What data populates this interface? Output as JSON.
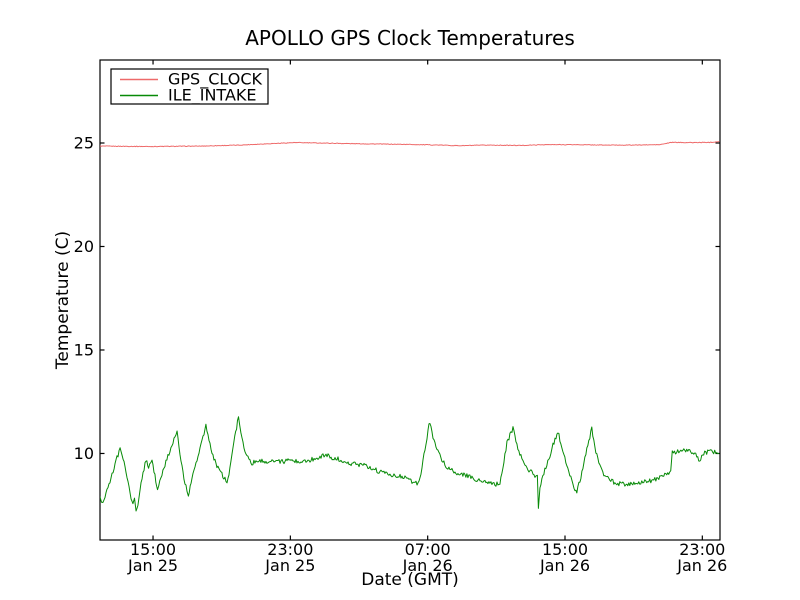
{
  "figure": {
    "background": "#ffffff",
    "frame_color": "#000000"
  },
  "chart_data": {
    "type": "line",
    "title": "APOLLO GPS Clock Temperatures",
    "xlabel": "Date (GMT)",
    "ylabel": "Temperature (C)",
    "x_unit": "hours_since_Jan25_0000_GMT",
    "xlim": [
      11.91,
      48.03
    ],
    "ylim": [
      5.82,
      29.01
    ],
    "grid": false,
    "legend_position": "upper-left",
    "x_ticks": [
      {
        "value": 15,
        "time": "15:00",
        "date": "Jan 25"
      },
      {
        "value": 23,
        "time": "23:00",
        "date": "Jan 25"
      },
      {
        "value": 31,
        "time": "07:00",
        "date": "Jan 26"
      },
      {
        "value": 39,
        "time": "15:00",
        "date": "Jan 26"
      },
      {
        "value": 47,
        "time": "23:00",
        "date": "Jan 26"
      }
    ],
    "y_ticks": [
      {
        "value": 10,
        "label": "10"
      },
      {
        "value": 15,
        "label": "15"
      },
      {
        "value": 20,
        "label": "20"
      },
      {
        "value": 25,
        "label": "25"
      }
    ],
    "series": [
      {
        "name": "GPS_CLOCK",
        "color": "#ee6a6a",
        "noise_amplitude": 0.015,
        "points": [
          [
            11.91,
            24.85
          ],
          [
            14.82,
            24.83
          ],
          [
            17.74,
            24.85
          ],
          [
            20.07,
            24.9
          ],
          [
            21.81,
            24.97
          ],
          [
            23.27,
            25.02
          ],
          [
            24.73,
            25.0
          ],
          [
            26.47,
            24.97
          ],
          [
            28.22,
            24.95
          ],
          [
            29.97,
            24.93
          ],
          [
            31.71,
            24.9
          ],
          [
            32.88,
            24.87
          ],
          [
            34.63,
            24.9
          ],
          [
            36.37,
            24.88
          ],
          [
            37.83,
            24.92
          ],
          [
            39.58,
            24.92
          ],
          [
            41.32,
            24.9
          ],
          [
            43.07,
            24.9
          ],
          [
            44.53,
            24.92
          ],
          [
            45.22,
            25.03
          ],
          [
            46.27,
            25.02
          ],
          [
            47.43,
            25.03
          ],
          [
            47.96,
            25.07
          ]
        ]
      },
      {
        "name": "ILE_INTAKE",
        "color": "#078a07",
        "noise_amplitude": 0.11,
        "points": [
          [
            11.91,
            7.9
          ],
          [
            12.0,
            7.75
          ],
          [
            12.08,
            7.6
          ],
          [
            12.26,
            8.1
          ],
          [
            12.49,
            8.6
          ],
          [
            12.73,
            9.3
          ],
          [
            12.9,
            9.8
          ],
          [
            13.08,
            10.2
          ],
          [
            13.31,
            9.6
          ],
          [
            13.54,
            8.6
          ],
          [
            13.72,
            7.9
          ],
          [
            13.83,
            7.5
          ],
          [
            13.92,
            7.8
          ],
          [
            14.01,
            7.15
          ],
          [
            14.12,
            7.6
          ],
          [
            14.36,
            8.8
          ],
          [
            14.59,
            9.7
          ],
          [
            14.74,
            9.3
          ],
          [
            14.94,
            9.75
          ],
          [
            15.11,
            8.9
          ],
          [
            15.26,
            8.25
          ],
          [
            15.46,
            8.8
          ],
          [
            15.75,
            9.6
          ],
          [
            16.1,
            10.4
          ],
          [
            16.4,
            11.0
          ],
          [
            16.57,
            10.0
          ],
          [
            16.8,
            8.8
          ],
          [
            16.98,
            8.15
          ],
          [
            17.06,
            8.0
          ],
          [
            17.27,
            8.8
          ],
          [
            17.62,
            9.9
          ],
          [
            17.91,
            10.8
          ],
          [
            18.08,
            11.35
          ],
          [
            18.26,
            10.6
          ],
          [
            18.49,
            9.9
          ],
          [
            18.78,
            9.3
          ],
          [
            19.07,
            8.9
          ],
          [
            19.31,
            8.6
          ],
          [
            19.48,
            9.3
          ],
          [
            19.71,
            10.5
          ],
          [
            19.92,
            11.5
          ],
          [
            19.98,
            11.7
          ],
          [
            20.12,
            11.0
          ],
          [
            20.3,
            10.3
          ],
          [
            20.53,
            9.85
          ],
          [
            20.76,
            9.55
          ],
          [
            21.11,
            9.65
          ],
          [
            21.52,
            9.6
          ],
          [
            21.93,
            9.65
          ],
          [
            22.4,
            9.6
          ],
          [
            22.98,
            9.65
          ],
          [
            23.56,
            9.6
          ],
          [
            24.03,
            9.65
          ],
          [
            24.61,
            9.8
          ],
          [
            25.02,
            9.95
          ],
          [
            25.43,
            9.8
          ],
          [
            25.89,
            9.7
          ],
          [
            26.48,
            9.5
          ],
          [
            27.06,
            9.45
          ],
          [
            27.64,
            9.35
          ],
          [
            28.22,
            9.1
          ],
          [
            28.8,
            9.0
          ],
          [
            29.39,
            8.9
          ],
          [
            29.85,
            8.75
          ],
          [
            30.2,
            8.6
          ],
          [
            30.44,
            8.5
          ],
          [
            30.61,
            9.0
          ],
          [
            30.84,
            10.2
          ],
          [
            31.02,
            11.1
          ],
          [
            31.13,
            11.55
          ],
          [
            31.31,
            10.8
          ],
          [
            31.54,
            10.2
          ],
          [
            31.77,
            9.8
          ],
          [
            32.12,
            9.35
          ],
          [
            32.59,
            9.1
          ],
          [
            33.05,
            9.0
          ],
          [
            33.46,
            8.85
          ],
          [
            33.93,
            8.7
          ],
          [
            34.45,
            8.6
          ],
          [
            34.92,
            8.5
          ],
          [
            35.21,
            8.55
          ],
          [
            35.38,
            9.3
          ],
          [
            35.62,
            10.5
          ],
          [
            35.85,
            11.0
          ],
          [
            35.97,
            11.2
          ],
          [
            36.14,
            10.6
          ],
          [
            36.37,
            10.0
          ],
          [
            36.67,
            9.45
          ],
          [
            36.96,
            9.15
          ],
          [
            37.25,
            8.95
          ],
          [
            37.39,
            8.85
          ],
          [
            37.45,
            7.3
          ],
          [
            37.54,
            8.3
          ],
          [
            37.71,
            8.9
          ],
          [
            38.0,
            9.6
          ],
          [
            38.3,
            10.4
          ],
          [
            38.59,
            11.05
          ],
          [
            38.76,
            10.5
          ],
          [
            38.99,
            9.8
          ],
          [
            39.28,
            9.0
          ],
          [
            39.52,
            8.4
          ],
          [
            39.69,
            8.1
          ],
          [
            39.87,
            8.7
          ],
          [
            40.1,
            9.5
          ],
          [
            40.33,
            10.4
          ],
          [
            40.56,
            11.2
          ],
          [
            40.74,
            10.3
          ],
          [
            40.97,
            9.5
          ],
          [
            41.26,
            9.0
          ],
          [
            41.61,
            8.7
          ],
          [
            42.08,
            8.55
          ],
          [
            42.66,
            8.5
          ],
          [
            43.24,
            8.55
          ],
          [
            43.82,
            8.65
          ],
          [
            44.41,
            8.8
          ],
          [
            44.87,
            9.0
          ],
          [
            45.16,
            9.15
          ],
          [
            45.25,
            10.05
          ],
          [
            45.69,
            10.1
          ],
          [
            46.15,
            10.15
          ],
          [
            46.56,
            10.05
          ],
          [
            46.85,
            9.65
          ],
          [
            47.08,
            10.0
          ],
          [
            47.43,
            10.1
          ],
          [
            47.72,
            10.05
          ],
          [
            47.96,
            10.0
          ]
        ]
      }
    ]
  }
}
